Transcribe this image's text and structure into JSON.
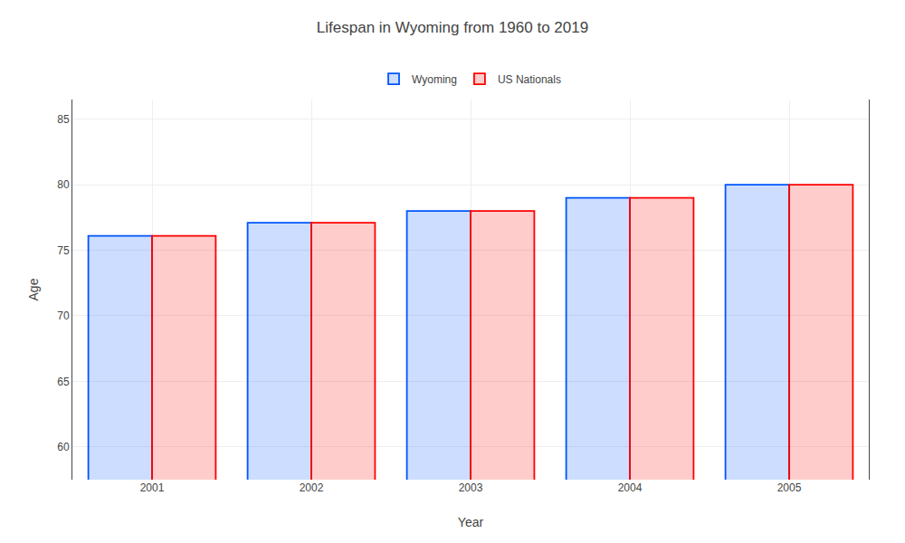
{
  "chart_data": {
    "type": "bar",
    "title": "Lifespan in Wyoming from 1960 to 2019",
    "xlabel": "Year",
    "ylabel": "Age",
    "categories": [
      "2001",
      "2002",
      "2003",
      "2004",
      "2005"
    ],
    "series": [
      {
        "name": "Wyoming",
        "color": "#0055ff",
        "values": [
          76.1,
          77.1,
          78.0,
          79.0,
          80.0
        ]
      },
      {
        "name": "US Nationals",
        "color": "#ff0000",
        "values": [
          76.1,
          77.1,
          78.0,
          79.0,
          80.0
        ]
      }
    ],
    "ylim": [
      57.5,
      86.5
    ],
    "yticks": [
      60,
      65,
      70,
      75,
      80,
      85
    ],
    "grid": true,
    "legend": "top"
  }
}
